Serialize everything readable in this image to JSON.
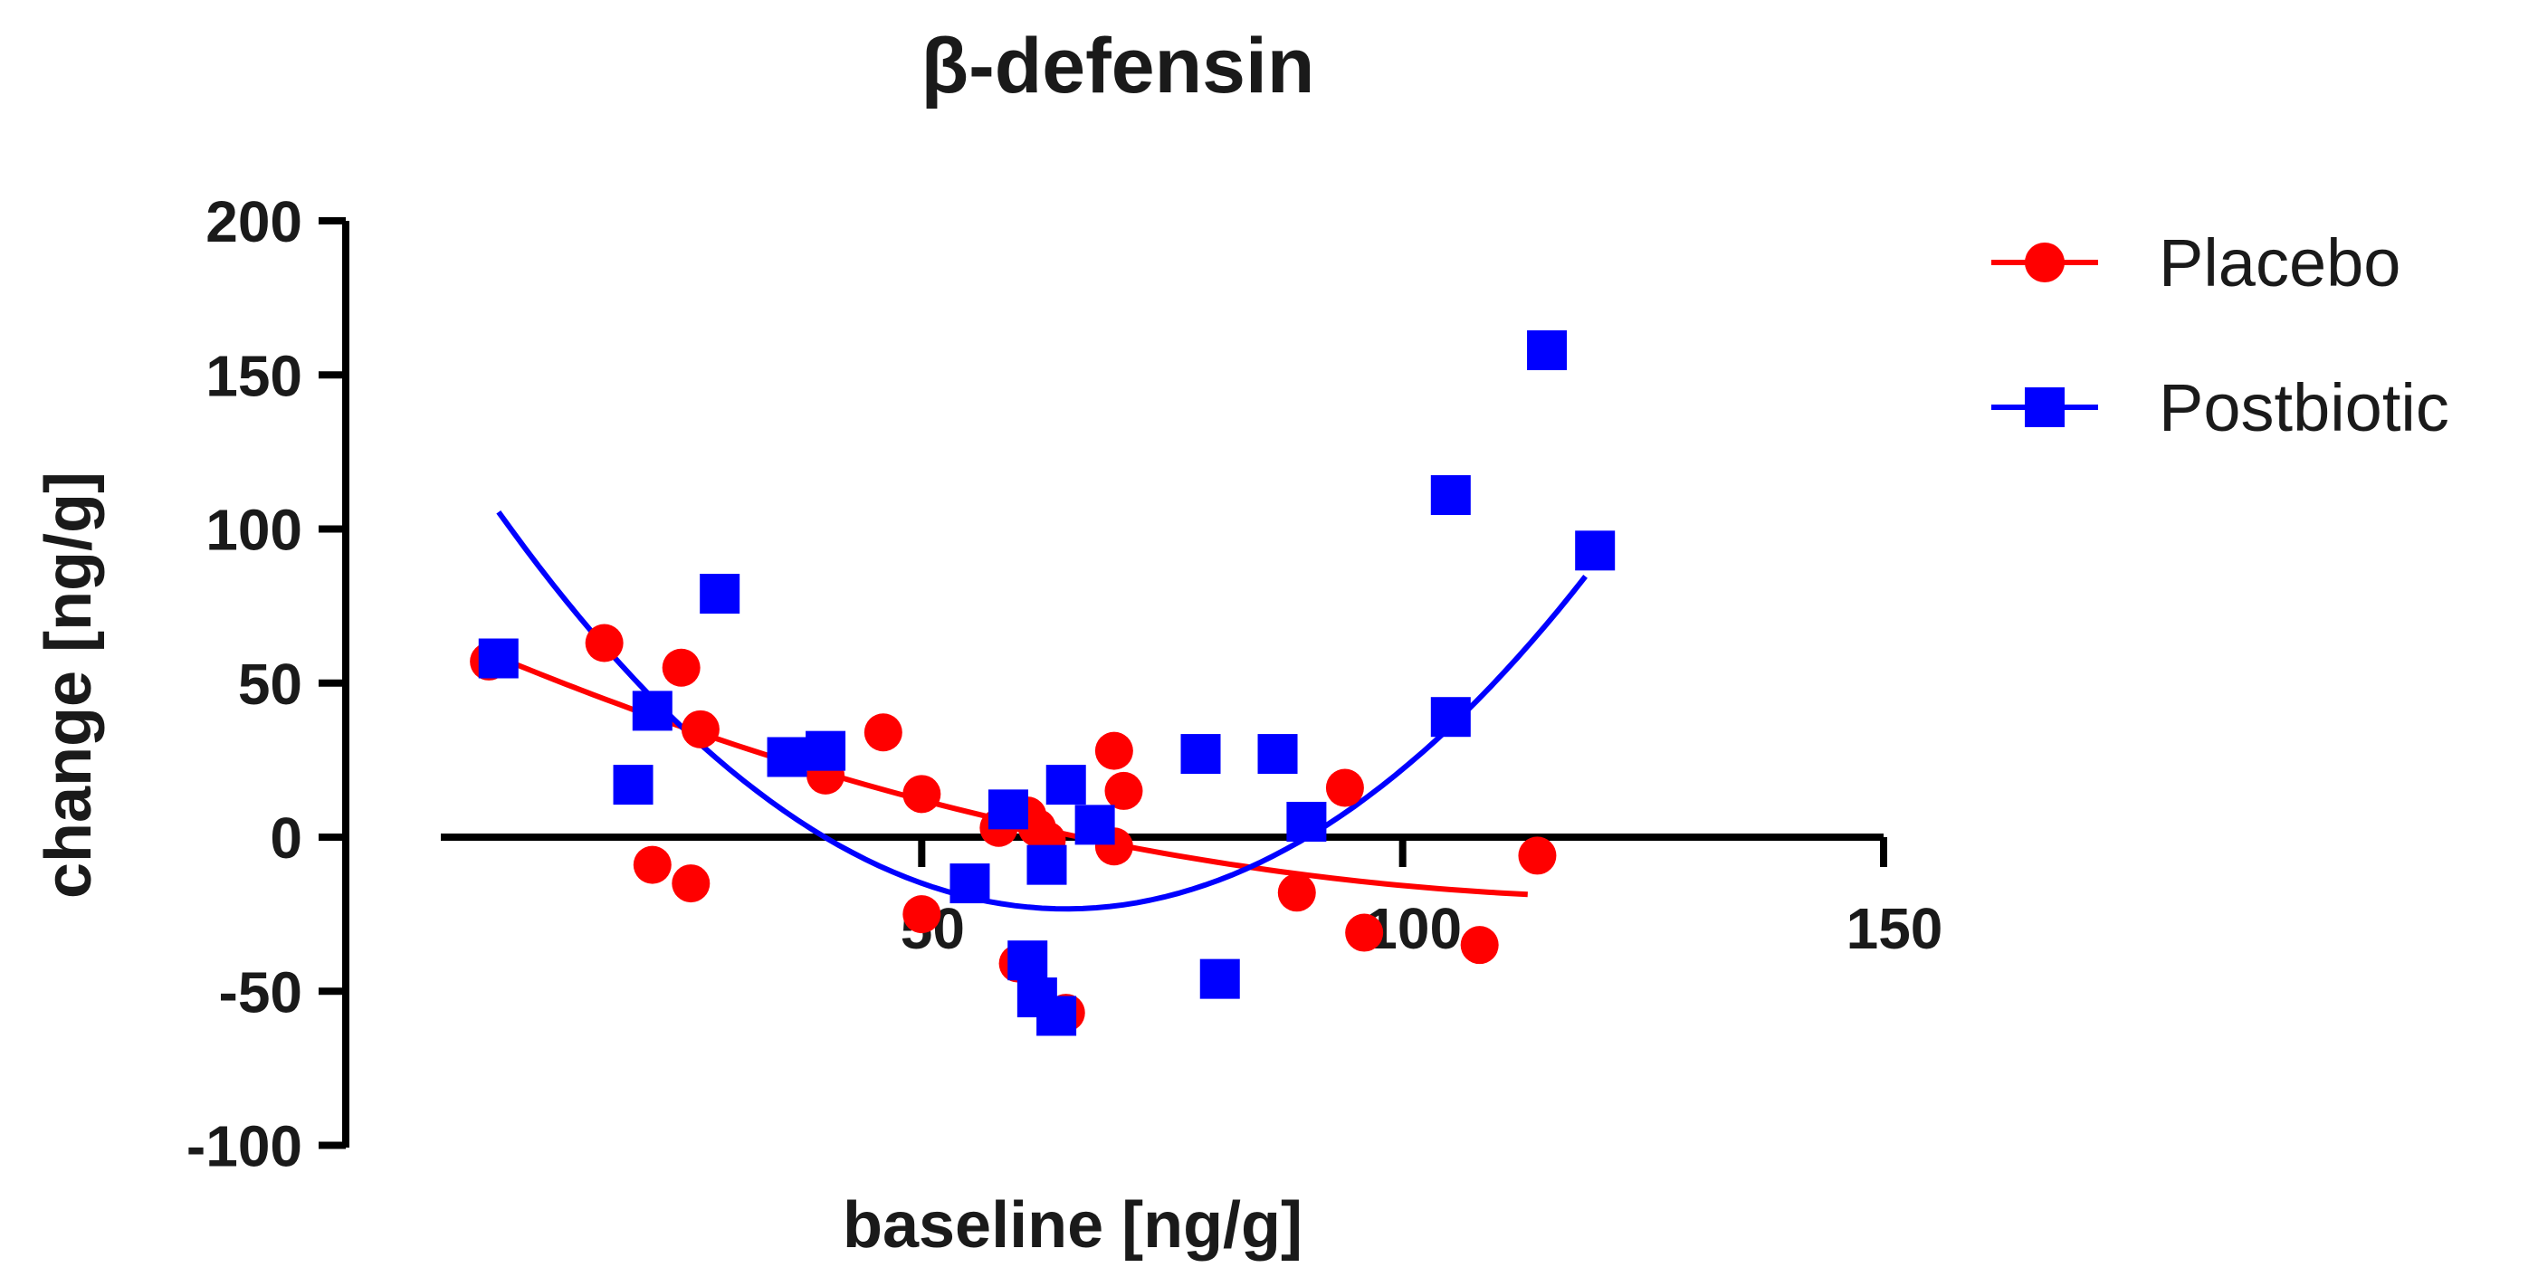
{
  "chart_data": {
    "type": "scatter",
    "title": "β-defensin",
    "xlabel": "baseline [ng/g]",
    "ylabel": "change [ng/g]",
    "xlim": [
      0,
      150
    ],
    "ylim": [
      -100,
      200
    ],
    "xticks": [
      50,
      100,
      150
    ],
    "yticks": [
      -100,
      -50,
      0,
      50,
      100,
      150,
      200
    ],
    "legend_position": "top-right",
    "series": [
      {
        "name": "Placebo",
        "marker": "circle",
        "color": "#ff0000",
        "points": [
          [
            5,
            57
          ],
          [
            17,
            63
          ],
          [
            22,
            -9
          ],
          [
            25,
            55
          ],
          [
            26,
            -15
          ],
          [
            27,
            35
          ],
          [
            40,
            20
          ],
          [
            46,
            34
          ],
          [
            50,
            14
          ],
          [
            50,
            -25
          ],
          [
            58,
            3
          ],
          [
            61,
            7
          ],
          [
            60,
            -41
          ],
          [
            62,
            3
          ],
          [
            63,
            -1
          ],
          [
            65,
            -57
          ],
          [
            70,
            28
          ],
          [
            71,
            15
          ],
          [
            70,
            -3
          ],
          [
            89,
            -18
          ],
          [
            94,
            16
          ],
          [
            96,
            -31
          ],
          [
            108,
            -35
          ],
          [
            114,
            -6
          ]
        ],
        "fit": {
          "type": "quadratic",
          "coefficients": [
            66.3,
            -1.35,
            0.0053
          ],
          "x_range": [
            5,
            113
          ]
        }
      },
      {
        "name": "Postbiotic",
        "marker": "square",
        "color": "#0000ff",
        "points": [
          [
            6,
            58
          ],
          [
            20,
            17
          ],
          [
            22,
            41
          ],
          [
            29,
            79
          ],
          [
            36,
            26
          ],
          [
            40,
            28
          ],
          [
            55,
            -15
          ],
          [
            59,
            9
          ],
          [
            61,
            -40
          ],
          [
            62,
            -52
          ],
          [
            63,
            -9
          ],
          [
            64,
            -58
          ],
          [
            65,
            17
          ],
          [
            68,
            4
          ],
          [
            79,
            27
          ],
          [
            81,
            -46
          ],
          [
            87,
            27
          ],
          [
            90,
            5
          ],
          [
            105,
            39
          ],
          [
            105,
            111
          ],
          [
            115,
            158
          ],
          [
            120,
            93
          ]
        ],
        "fit": {
          "type": "quadratic",
          "coefficients": [
            133.05,
            -4.81,
            0.037
          ],
          "x_range": [
            6,
            119
          ]
        }
      }
    ]
  }
}
